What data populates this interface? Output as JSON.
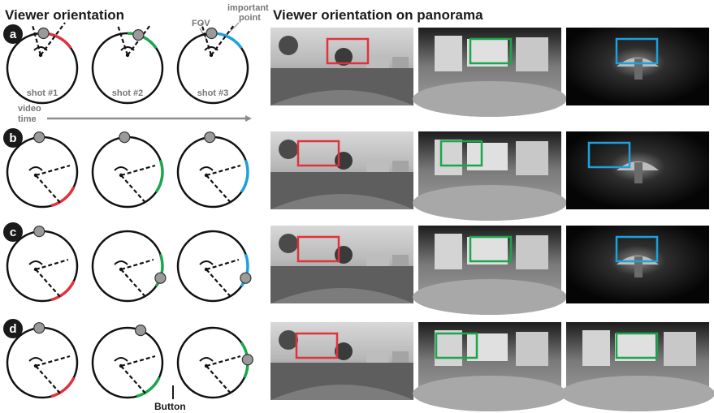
{
  "headings": {
    "left": "Viewer orientation",
    "right": "Viewer orientation on panorama"
  },
  "annotations": {
    "fov": "FOV",
    "important_point_line1": "important",
    "important_point_line2": "point",
    "video_time_line1": "video",
    "video_time_line2": "time",
    "button": "Button"
  },
  "shots": [
    "shot #1",
    "shot #2",
    "shot #3"
  ],
  "colors": {
    "shot1": "#e0323c",
    "shot2": "#1aa64b",
    "shot3": "#1ea0dc",
    "point": "#9a9a9a",
    "arrow": "#8c8c8c",
    "badge": "#1a1a1a"
  },
  "rows": [
    {
      "id": "a",
      "label": "a",
      "thumbs": [
        "street",
        "room",
        "dark"
      ],
      "box_colors": [
        "shot1",
        "shot2",
        "shot3"
      ]
    },
    {
      "id": "b",
      "label": "b",
      "thumbs": [
        "street",
        "room",
        "dark"
      ],
      "box_colors": [
        "shot1",
        "shot2",
        "shot3"
      ]
    },
    {
      "id": "c",
      "label": "c",
      "thumbs": [
        "street",
        "room",
        "dark"
      ],
      "box_colors": [
        "shot1",
        "shot2",
        "shot3"
      ]
    },
    {
      "id": "d",
      "label": "d",
      "thumbs": [
        "street",
        "room",
        "room"
      ],
      "box_colors": [
        "shot1",
        "shot2",
        "shot2"
      ]
    }
  ]
}
